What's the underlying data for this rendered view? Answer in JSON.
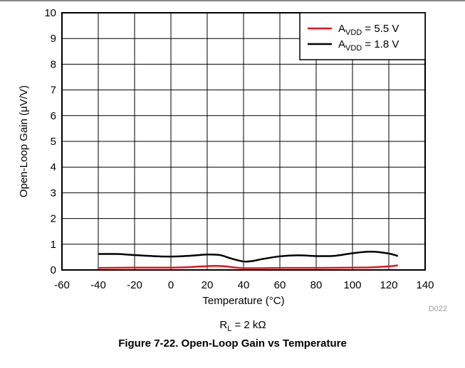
{
  "chart_data": {
    "type": "line",
    "title": "",
    "xlabel": "Temperature (°C)",
    "ylabel": "Open-Loop Gain (μV/V)",
    "xlim": [
      -60,
      140
    ],
    "ylim": [
      0,
      10
    ],
    "x_ticks": [
      "-60",
      "-40",
      "-20",
      "0",
      "20",
      "40",
      "60",
      "80",
      "100",
      "120",
      "140"
    ],
    "y_ticks": [
      "0",
      "1",
      "2",
      "3",
      "4",
      "5",
      "6",
      "7",
      "8",
      "9",
      "10"
    ],
    "grid": true,
    "legend_position": "top-right",
    "series": [
      {
        "label_main": "A",
        "label_sub": "VDD",
        "label_tail": " = 5.5 V",
        "color": "#e8141c",
        "x": [
          -40,
          -20,
          0,
          10,
          20,
          25,
          30,
          40,
          60,
          80,
          100,
          110,
          120,
          125
        ],
        "y": [
          0.08,
          0.09,
          0.09,
          0.11,
          0.15,
          0.16,
          0.14,
          0.07,
          0.08,
          0.08,
          0.09,
          0.1,
          0.14,
          0.18
        ]
      },
      {
        "label_main": "A",
        "label_sub": "VDD",
        "label_tail": " = 1.8 V",
        "color": "#000000",
        "x": [
          -40,
          -30,
          -20,
          -10,
          0,
          10,
          20,
          27,
          33,
          40,
          45,
          50,
          60,
          70,
          80,
          90,
          100,
          110,
          120,
          125
        ],
        "y": [
          0.62,
          0.62,
          0.58,
          0.54,
          0.52,
          0.55,
          0.6,
          0.58,
          0.45,
          0.33,
          0.35,
          0.42,
          0.53,
          0.57,
          0.54,
          0.55,
          0.65,
          0.71,
          0.64,
          0.54
        ]
      }
    ],
    "annotation": "D022"
  },
  "condition": {
    "main": "R",
    "sub": "L",
    "tail": " = 2 kΩ"
  },
  "caption": "Figure 7-22. Open-Loop Gain vs Temperature"
}
